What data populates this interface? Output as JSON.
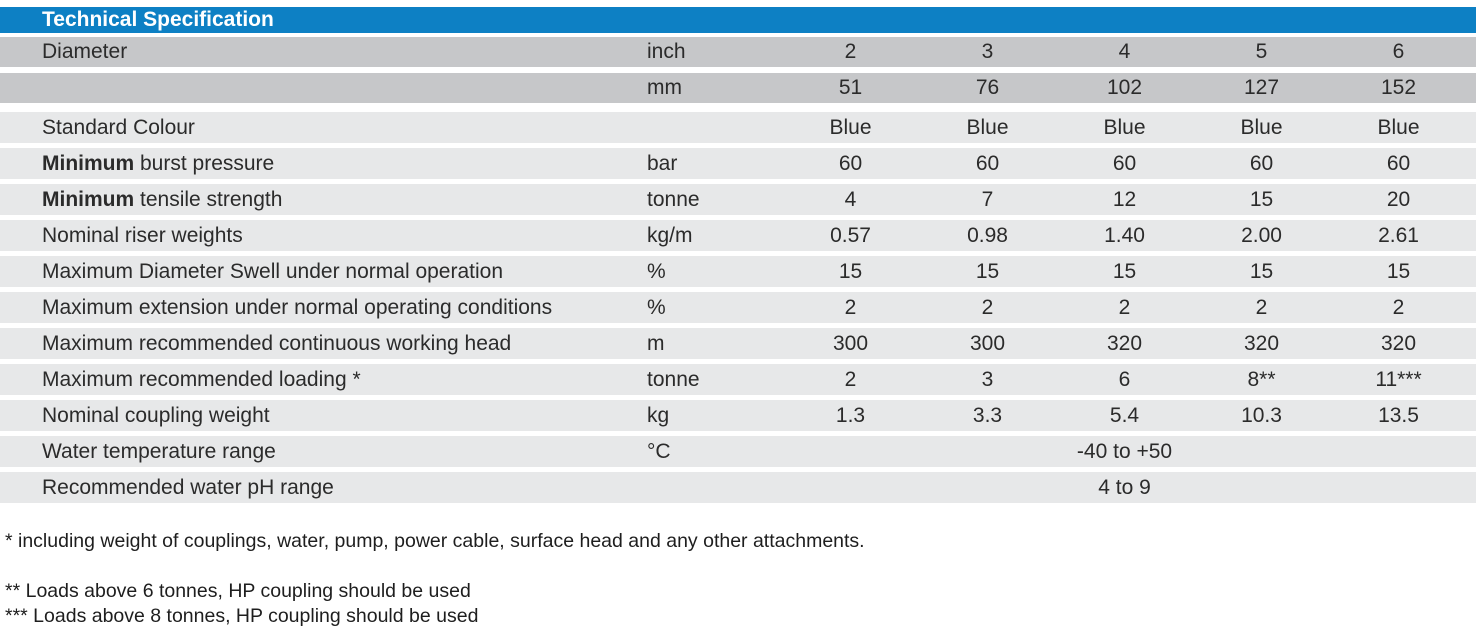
{
  "title_bar": {
    "title": "Technical Specification"
  },
  "colors": {
    "header_blue": "#0d80c4",
    "row_dark": "#c6c7c9",
    "row_light": "#e7e8e9",
    "text": "#2b2b2b"
  },
  "table": {
    "rows": [
      {
        "shade": "dark",
        "label": "Diameter",
        "unit": "inch",
        "values": [
          "2",
          "3",
          "4",
          "5",
          "6"
        ]
      },
      {
        "shade": "dark",
        "label": "",
        "unit": "mm",
        "values": [
          "51",
          "76",
          "102",
          "127",
          "152"
        ],
        "gap_after": true
      },
      {
        "shade": "light",
        "label": "Standard Colour",
        "unit": "",
        "values": [
          "Blue",
          "Blue",
          "Blue",
          "Blue",
          "Blue"
        ]
      },
      {
        "shade": "light",
        "label_bold": "Minimum",
        "label": "burst pressure",
        "unit": "bar",
        "values": [
          "60",
          "60",
          "60",
          "60",
          "60"
        ]
      },
      {
        "shade": "light",
        "label_bold": "Minimum",
        "label": "tensile strength",
        "unit": "tonne",
        "values": [
          "4",
          "7",
          "12",
          "15",
          "20"
        ]
      },
      {
        "shade": "light",
        "label": "Nominal riser weights",
        "unit": "kg/m",
        "values": [
          "0.57",
          "0.98",
          "1.40",
          "2.00",
          "2.61"
        ]
      },
      {
        "shade": "light",
        "label": "Maximum Diameter Swell under normal operation",
        "unit": "%",
        "values": [
          "15",
          "15",
          "15",
          "15",
          "15"
        ]
      },
      {
        "shade": "light",
        "label": "Maximum extension under normal operating conditions",
        "unit": "%",
        "values": [
          "2",
          "2",
          "2",
          "2",
          "2"
        ]
      },
      {
        "shade": "light",
        "label": "Maximum recommended continuous working head",
        "unit": "m",
        "values": [
          "300",
          "300",
          "320",
          "320",
          "320"
        ]
      },
      {
        "shade": "light",
        "label": "Maximum recommended loading *",
        "unit": "tonne",
        "values": [
          "2",
          "3",
          "6",
          "8**",
          "11***"
        ]
      },
      {
        "shade": "light",
        "label": "Nominal coupling weight",
        "unit": "kg",
        "values": [
          "1.3",
          "3.3",
          "5.4",
          "10.3",
          "13.5"
        ]
      },
      {
        "shade": "light",
        "label": "Water temperature range",
        "unit": "°C",
        "span_value": "-40 to +50"
      },
      {
        "shade": "light",
        "label": "Recommended water pH range",
        "unit": "",
        "span_value": "4 to 9"
      }
    ]
  },
  "footnotes": {
    "note1": "* including weight of couplings, water, pump, power cable, surface head and any other attachments.",
    "note2": "** Loads above 6 tonnes, HP coupling should be used",
    "note3": "*** Loads above 8 tonnes, HP coupling should be used"
  }
}
